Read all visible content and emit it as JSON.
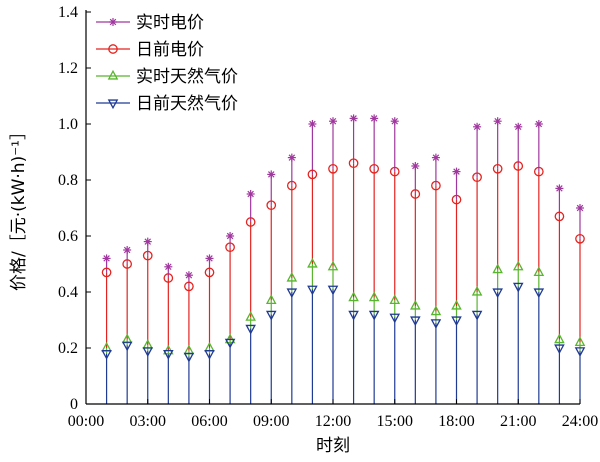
{
  "chart_data": {
    "type": "stem",
    "xlabel": "时刻",
    "ylabel": "价格/［元·(kW·h)⁻¹］",
    "xlim": [
      0,
      24
    ],
    "ylim": [
      0,
      1.4
    ],
    "x_ticks": [
      "00:00",
      "03:00",
      "06:00",
      "09:00",
      "12:00",
      "15:00",
      "18:00",
      "21:00",
      "24:00"
    ],
    "y_ticks": [
      "0",
      "0.2",
      "0.4",
      "0.6",
      "0.8",
      "1.0",
      "1.2",
      "1.4"
    ],
    "x": [
      1,
      2,
      3,
      4,
      5,
      6,
      7,
      8,
      9,
      10,
      11,
      12,
      13,
      14,
      15,
      16,
      17,
      18,
      19,
      20,
      21,
      22,
      23,
      24
    ],
    "series": [
      {
        "name": "实时电价",
        "marker": "star",
        "color": "#a0379e",
        "values": [
          0.52,
          0.55,
          0.58,
          0.49,
          0.46,
          0.52,
          0.6,
          0.75,
          0.82,
          0.88,
          1.0,
          1.01,
          1.02,
          1.02,
          1.01,
          0.85,
          0.88,
          0.83,
          0.99,
          1.01,
          0.99,
          1.0,
          0.77,
          0.7
        ]
      },
      {
        "name": "日前电价",
        "marker": "circle",
        "color": "#e3231f",
        "values": [
          0.47,
          0.5,
          0.53,
          0.45,
          0.42,
          0.47,
          0.56,
          0.65,
          0.71,
          0.78,
          0.82,
          0.84,
          0.86,
          0.84,
          0.83,
          0.75,
          0.78,
          0.73,
          0.81,
          0.84,
          0.85,
          0.83,
          0.67,
          0.59
        ]
      },
      {
        "name": "实时天然气价",
        "marker": "triangle-up",
        "color": "#58b52d",
        "values": [
          0.2,
          0.23,
          0.21,
          0.19,
          0.19,
          0.2,
          0.23,
          0.31,
          0.37,
          0.45,
          0.5,
          0.49,
          0.38,
          0.38,
          0.37,
          0.35,
          0.33,
          0.35,
          0.4,
          0.48,
          0.49,
          0.47,
          0.23,
          0.22
        ]
      },
      {
        "name": "日前天然气价",
        "marker": "triangle-down",
        "color": "#1f3a93",
        "values": [
          0.18,
          0.21,
          0.19,
          0.18,
          0.17,
          0.18,
          0.22,
          0.27,
          0.32,
          0.4,
          0.41,
          0.41,
          0.32,
          0.32,
          0.31,
          0.3,
          0.29,
          0.3,
          0.32,
          0.4,
          0.42,
          0.4,
          0.2,
          0.19
        ]
      }
    ],
    "legend_position": "top-left",
    "grid": false
  }
}
